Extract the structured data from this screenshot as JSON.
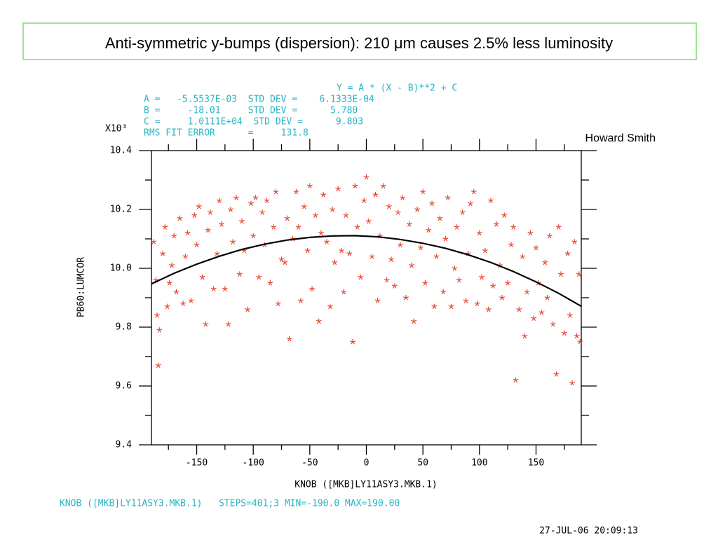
{
  "chart_data": {
    "type": "scatter",
    "title": "Anti-symmetric y-bumps (dispersion): 210 μm causes 2.5% less luminosity",
    "fit_text": [
      "Y = A * (X - B)**2 + C",
      "A =   -5.5537E-03  STD DEV =    6.1333E-04",
      "B =     -18.01     STD DEV =      5.780",
      "C =     1.0111E+04  STD DEV =      9.803",
      "RMS FIT ERROR      =     131.8"
    ],
    "y_scale_label": "X10³",
    "author": "Howard Smith",
    "ylabel": "PB60:LUMCOR",
    "xlabel": "KNOB ([MKB]LY11ASY3.MKB.1)",
    "footer": "KNOB ([MKB]LY11ASY3.MKB.1)   STEPS=401;3 MIN=-190.0 MAX=190.00",
    "timestamp": "27-JUL-06 20:09:13",
    "xlim": [
      -190,
      190
    ],
    "ylim": [
      9.4,
      10.4
    ],
    "xticks": [
      -150,
      -100,
      -50,
      0,
      50,
      100,
      150
    ],
    "xminor_ticks": [
      -175,
      -125,
      -75,
      -25,
      25,
      75,
      125,
      175
    ],
    "yticks": [
      9.4,
      9.6,
      9.8,
      {
        "value": 10,
        "label": "10.0"
      },
      10.2,
      10.4
    ],
    "yminor_ticks": [
      9.5,
      9.7,
      9.9,
      10.1,
      10.3
    ],
    "series": [
      {
        "name": "PB60:LUMCOR",
        "color": "#e8452f",
        "x": [
          -188,
          -186,
          -185,
          -184,
          -183,
          -180,
          -178,
          -176,
          -174,
          -172,
          -170,
          -168,
          -165,
          -162,
          -160,
          -158,
          -155,
          -152,
          -150,
          -148,
          -145,
          -142,
          -140,
          -138,
          -135,
          -132,
          -130,
          -128,
          -125,
          -122,
          -120,
          -118,
          -115,
          -112,
          -110,
          -108,
          -105,
          -102,
          -100,
          -98,
          -95,
          -92,
          -90,
          -88,
          -85,
          -82,
          -80,
          -78,
          -75,
          -72,
          -70,
          -68,
          -65,
          -62,
          -60,
          -58,
          -55,
          -52,
          -50,
          -48,
          -45,
          -42,
          -40,
          -38,
          -35,
          -32,
          -30,
          -28,
          -25,
          -22,
          -20,
          -18,
          -15,
          -12,
          -10,
          -8,
          -5,
          -2,
          0,
          2,
          5,
          8,
          10,
          12,
          15,
          18,
          20,
          22,
          25,
          28,
          30,
          32,
          35,
          38,
          40,
          42,
          45,
          48,
          50,
          52,
          55,
          58,
          60,
          62,
          65,
          68,
          70,
          72,
          75,
          78,
          80,
          82,
          85,
          88,
          90,
          92,
          95,
          98,
          100,
          102,
          105,
          108,
          110,
          112,
          115,
          118,
          120,
          122,
          125,
          128,
          130,
          132,
          135,
          138,
          140,
          142,
          145,
          148,
          150,
          152,
          155,
          158,
          160,
          162,
          165,
          168,
          170,
          172,
          175,
          178,
          180,
          182,
          184,
          186,
          188,
          189
        ],
        "values": [
          10.09,
          9.96,
          9.84,
          9.67,
          9.79,
          10.05,
          10.14,
          9.87,
          9.95,
          10.01,
          10.11,
          9.92,
          10.17,
          9.88,
          10.04,
          10.12,
          9.89,
          10.18,
          10.08,
          10.21,
          9.97,
          9.81,
          10.13,
          10.19,
          9.93,
          10.05,
          10.23,
          10.15,
          9.93,
          9.81,
          10.2,
          10.09,
          10.24,
          9.98,
          10.16,
          10.06,
          9.86,
          10.22,
          10.11,
          10.24,
          9.97,
          10.19,
          10.08,
          10.23,
          9.95,
          10.14,
          10.26,
          9.88,
          10.03,
          10.02,
          10.17,
          9.76,
          10.1,
          10.26,
          10.14,
          9.89,
          10.21,
          10.06,
          10.28,
          9.93,
          10.18,
          9.82,
          10.12,
          10.25,
          10.09,
          9.87,
          10.2,
          10.02,
          10.27,
          10.06,
          9.92,
          10.18,
          10.05,
          9.75,
          10.28,
          10.14,
          9.97,
          10.23,
          10.31,
          10.16,
          10.04,
          10.25,
          9.89,
          10.11,
          10.28,
          9.96,
          10.21,
          10.03,
          9.94,
          10.19,
          10.08,
          10.24,
          9.9,
          10.15,
          10.01,
          9.82,
          10.2,
          10.07,
          10.26,
          9.95,
          10.13,
          10.22,
          9.87,
          10.04,
          10.17,
          9.92,
          10.1,
          10.24,
          9.87,
          10.0,
          10.14,
          9.96,
          10.19,
          9.89,
          10.05,
          10.22,
          10.26,
          9.88,
          10.12,
          9.97,
          10.06,
          9.86,
          10.23,
          9.94,
          10.15,
          10.01,
          9.9,
          10.18,
          9.95,
          10.08,
          10.14,
          9.62,
          9.86,
          10.04,
          9.77,
          9.92,
          10.12,
          9.83,
          10.07,
          9.95,
          9.85,
          10.02,
          9.9,
          10.11,
          9.81,
          9.64,
          10.14,
          9.98,
          9.78,
          10.05,
          9.84,
          9.61,
          10.09,
          9.77,
          9.98,
          9.75
        ]
      },
      {
        "name": "Y = A * (X - B)**2 + C",
        "type": "line",
        "color": "#000000",
        "x": [
          -190,
          -170,
          -150,
          -130,
          -110,
          -90,
          -70,
          -50,
          -30,
          -10,
          10,
          30,
          50,
          70,
          90,
          110,
          130,
          150,
          170,
          190
        ],
        "values": [
          9.947,
          9.983,
          10.014,
          10.041,
          10.064,
          10.082,
          10.096,
          10.105,
          10.11,
          10.111,
          10.107,
          10.098,
          10.085,
          10.068,
          10.046,
          10.02,
          9.989,
          9.954,
          9.915,
          9.871
        ]
      }
    ]
  }
}
